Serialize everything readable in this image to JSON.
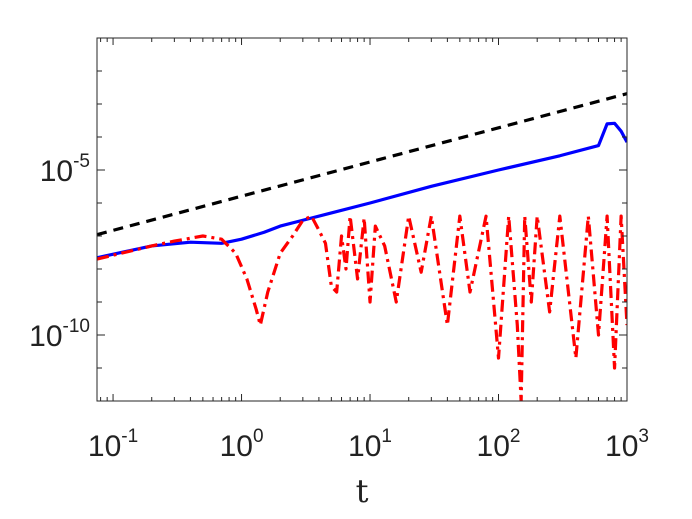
{
  "chart_data": {
    "type": "line",
    "title": "",
    "xlabel": "t",
    "ylabel": "",
    "xscale": "log",
    "yscale": "log",
    "xlim": [
      0.075,
      1000
    ],
    "ylim": [
      1e-12,
      0.1
    ],
    "grid": false,
    "legend": "none",
    "x_ticks": [
      {
        "value": 0.1,
        "base": "10",
        "exp": "-1"
      },
      {
        "value": 1,
        "base": "10",
        "exp": "0"
      },
      {
        "value": 10,
        "base": "10",
        "exp": "1"
      },
      {
        "value": 100,
        "base": "10",
        "exp": "2"
      },
      {
        "value": 1000,
        "base": "10",
        "exp": "3"
      }
    ],
    "y_ticks": [
      {
        "value": 1e-05,
        "base": "10",
        "exp": "-5"
      },
      {
        "value": 1e-10,
        "base": "10",
        "exp": "-10"
      }
    ],
    "series": [
      {
        "color": "#000000",
        "style": "dashed",
        "x": [
          0.075,
          1000
        ],
        "y": [
          1.1e-07,
          0.00206
        ]
      },
      {
        "color": "#0000ff",
        "style": "solid",
        "x": [
          0.075,
          0.2,
          0.4,
          0.7,
          1.0,
          1.5,
          2.0,
          3.0,
          5.0,
          10,
          30,
          100,
          300,
          600,
          700,
          800,
          900,
          1000
        ],
        "y": [
          2.2e-08,
          5e-08,
          6.5e-08,
          6e-08,
          8e-08,
          1.3e-07,
          2e-07,
          3e-07,
          5e-07,
          1e-06,
          3.2e-06,
          1e-05,
          2.7e-05,
          5.5e-05,
          0.00025,
          0.00026,
          0.00015,
          7e-05
        ]
      },
      {
        "color": "#ff0000",
        "style": "dash-dot",
        "x": [
          0.075,
          0.2,
          0.3,
          0.5,
          0.7,
          0.9,
          1.1,
          1.3,
          1.4,
          1.6,
          2.0,
          2.5,
          3.0,
          3.5,
          4.0,
          4.5,
          5.0,
          5.5,
          6.0,
          6.5,
          7.0,
          8.0,
          9.0,
          10,
          11,
          13,
          16,
          20,
          25,
          30,
          40,
          50,
          60,
          80,
          100,
          120,
          140,
          150,
          160,
          180,
          200,
          250,
          300,
          400,
          500,
          600,
          700,
          800,
          900,
          1000
        ],
        "y": [
          2e-08,
          5e-08,
          7e-08,
          1e-07,
          8e-08,
          3e-08,
          5e-09,
          6e-10,
          2e-10,
          2e-09,
          3e-08,
          1e-07,
          3e-07,
          4e-07,
          1.5e-07,
          6e-08,
          3e-09,
          2e-09,
          1e-07,
          1e-08,
          4e-07,
          5e-09,
          3.5e-07,
          1e-09,
          2e-07,
          5e-08,
          1e-09,
          4e-07,
          8e-09,
          4e-07,
          2e-10,
          4e-07,
          2e-09,
          4e-07,
          2e-11,
          4e-07,
          2e-10,
          1e-12,
          4e-07,
          1e-09,
          4e-07,
          5e-10,
          4e-07,
          2e-11,
          4e-07,
          1e-10,
          4e-07,
          1e-11,
          4e-07,
          2e-10
        ]
      }
    ]
  }
}
